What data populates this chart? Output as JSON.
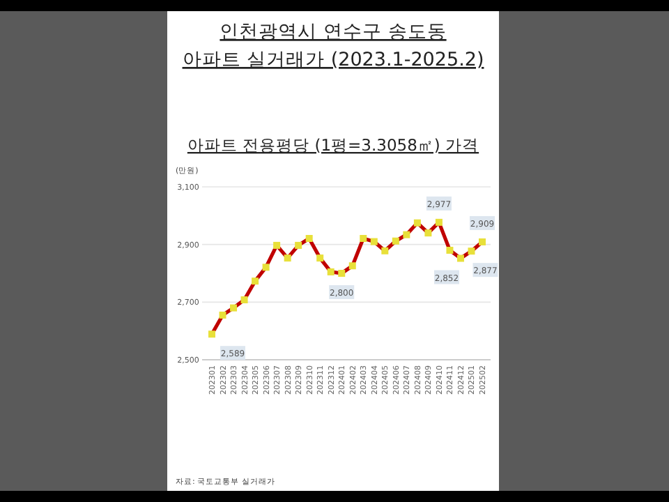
{
  "chart_data": {
    "type": "line",
    "title": "인천광역시 연수구 송도동 아파트 실거래가 (2023.1-2025.2)",
    "subtitle": "아파트 전용평당 (1평=3.3058㎡) 가격",
    "ylabel": "(만원)",
    "categories": [
      "202301",
      "202302",
      "202303",
      "202304",
      "202305",
      "202306",
      "202307",
      "202308",
      "202309",
      "202310",
      "202311",
      "202312",
      "202401",
      "202402",
      "202403",
      "202404",
      "202405",
      "202406",
      "202407",
      "202408",
      "202409",
      "202410",
      "202411",
      "202412",
      "202501",
      "202502"
    ],
    "series": [
      {
        "color": "#c00000",
        "values": [
          2589,
          2655,
          2680,
          2708,
          2773,
          2821,
          2897,
          2853,
          2897,
          2921,
          2853,
          2805,
          2800,
          2826,
          2921,
          2910,
          2878,
          2912,
          2934,
          2975,
          2940,
          2977,
          2880,
          2852,
          2877,
          2909
        ],
        "value_labels": [
          "2,589",
          null,
          null,
          null,
          null,
          null,
          null,
          null,
          null,
          null,
          null,
          null,
          "2,800",
          null,
          null,
          null,
          null,
          null,
          null,
          null,
          null,
          "2,977",
          null,
          "2,852",
          "2,877",
          "2,909"
        ]
      }
    ],
    "ylim": [
      2500,
      3100
    ],
    "yticks": [
      {
        "value": 2500,
        "label": "2,500"
      },
      {
        "value": 2700,
        "label": "2,700"
      },
      {
        "value": 2900,
        "label": "2,900"
      },
      {
        "value": 3100,
        "label": "3,100"
      }
    ],
    "grid": "y",
    "marker": "square",
    "line_style": "solid",
    "annotations": [
      "자료: 국토교통부 실거래가"
    ]
  }
}
